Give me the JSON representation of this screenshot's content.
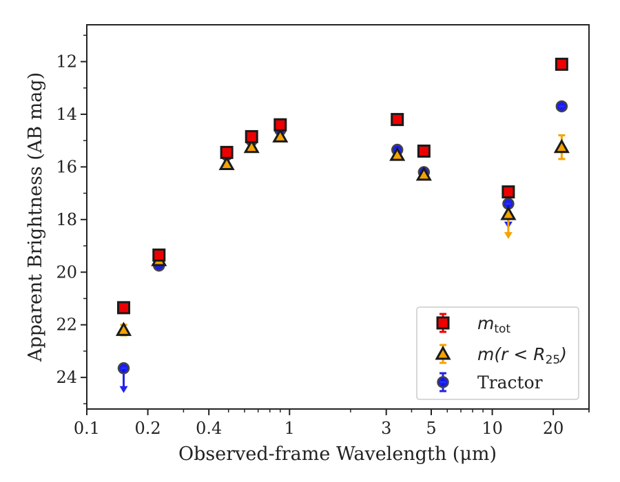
{
  "chart_data": {
    "type": "scatter",
    "xlabel": "Observed-frame Wavelength (μm)",
    "ylabel": "Apparent Brightness (AB mag)",
    "xscale": "log",
    "xlim": [
      0.1,
      30
    ],
    "ylim": [
      25.2,
      10.6
    ],
    "y_inverted": true,
    "grid": false,
    "legend_position": "lower-right",
    "x_ticks": [
      0.1,
      0.2,
      0.4,
      1,
      3,
      5,
      10,
      20
    ],
    "x_tick_labels": [
      "0.1",
      "0.2",
      "0.4",
      "1",
      "3",
      "5",
      "10",
      "20"
    ],
    "y_ticks": [
      12,
      14,
      16,
      18,
      20,
      22,
      24
    ],
    "y_tick_labels": [
      "12",
      "14",
      "16",
      "18",
      "20",
      "22",
      "24"
    ],
    "series": [
      {
        "name": "m_tot",
        "legend_main": "m",
        "legend_sub": "tot",
        "marker": "square",
        "color": "#ee0000",
        "errorbar_color": "#ee0000",
        "x": [
          0.152,
          0.227,
          0.49,
          0.65,
          0.9,
          3.4,
          4.6,
          12.0,
          22.0
        ],
        "y": [
          21.35,
          19.35,
          15.45,
          14.85,
          14.4,
          14.2,
          15.4,
          16.95,
          12.1
        ]
      },
      {
        "name": "m(r < R_25)",
        "legend_main": "m(r < R",
        "legend_sub": "25",
        "legend_tail": ")",
        "marker": "triangle",
        "color": "#f5a300",
        "errorbar_color": "#f5a300",
        "x": [
          0.152,
          0.227,
          0.49,
          0.65,
          0.9,
          3.4,
          4.6,
          12.0,
          22.0
        ],
        "y": [
          22.2,
          19.55,
          15.9,
          15.25,
          14.85,
          15.55,
          16.3,
          17.8,
          15.25
        ],
        "yerr": [
          0.2,
          0,
          0,
          0,
          0,
          0,
          0,
          0,
          0.45
        ],
        "upper_limit": [
          false,
          false,
          false,
          false,
          false,
          false,
          false,
          true,
          false
        ]
      },
      {
        "name": "Tractor",
        "legend_main": "Tractor",
        "marker": "circle",
        "color": "#1010ee",
        "errorbar_color": "#2222ee",
        "x": [
          0.152,
          0.227,
          0.49,
          0.65,
          0.9,
          3.4,
          4.6,
          12.0,
          22.0
        ],
        "y": [
          23.65,
          19.75,
          15.55,
          15.0,
          14.6,
          15.35,
          16.2,
          17.4,
          13.7
        ],
        "upper_limit": [
          true,
          false,
          false,
          false,
          false,
          false,
          false,
          true,
          false
        ]
      }
    ]
  }
}
